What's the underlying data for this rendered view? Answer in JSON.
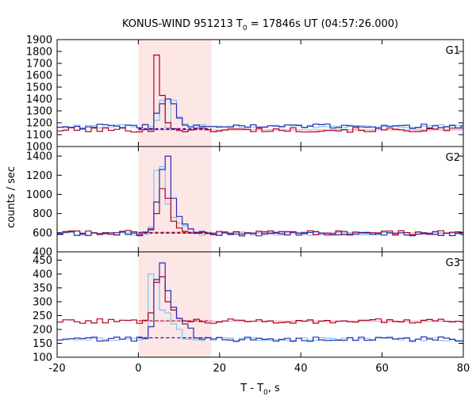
{
  "chart_data": {
    "type": "line",
    "title": "KONUS-WIND 951213 T",
    "title_sub": "0",
    "title_rest": " = 17846s UT (04:57:26.000)",
    "xlabel_main": "T - T",
    "xlabel_sub": "0",
    "xlabel_rest": ", s",
    "ylabel": "counts / sec",
    "xlim": [
      -20,
      80
    ],
    "xticks": [
      -20,
      0,
      20,
      40,
      60,
      80
    ],
    "highlight_interval": [
      0,
      18
    ],
    "bin_width": 1.4,
    "colors": {
      "red": "#b0001e",
      "blue": "#2c2cb4",
      "lightblue": "#78c8f0",
      "pink": "#f0a0b4",
      "shade": "#fde6e6",
      "background_dashes": "#1a1aa0"
    },
    "panels": [
      {
        "label": "G1",
        "ylim": [
          1000,
          1900
        ],
        "yticks": [
          1000,
          1100,
          1200,
          1300,
          1400,
          1500,
          1600,
          1700,
          1800,
          1900
        ],
        "background_level": 1150,
        "red_level": 1140,
        "blue_level": 1170,
        "red_peak": [
          [
            4.0,
            1770
          ],
          [
            5.4,
            1430
          ],
          [
            6.8,
            1200
          ],
          [
            8.2,
            1150
          ]
        ],
        "blue_peak": [
          [
            4.2,
            1280
          ],
          [
            5.6,
            1360
          ],
          [
            7.0,
            1400
          ],
          [
            8.4,
            1360
          ],
          [
            9.8,
            1240
          ],
          [
            11.2,
            1180
          ]
        ],
        "model_peak": [
          [
            3.6,
            1220
          ],
          [
            5.0,
            1390
          ],
          [
            7.8,
            1390
          ],
          [
            9.2,
            1250
          ],
          [
            10.6,
            1190
          ]
        ]
      },
      {
        "label": "G2",
        "ylim": [
          400,
          1500
        ],
        "yticks": [
          400,
          600,
          800,
          1000,
          1200,
          1400
        ],
        "background_level": 595,
        "red_level": 600,
        "blue_level": 590,
        "red_peak": [
          [
            2.0,
            640
          ],
          [
            3.4,
            800
          ],
          [
            4.8,
            1060
          ],
          [
            6.2,
            960
          ],
          [
            7.6,
            720
          ],
          [
            9.0,
            650
          ]
        ],
        "blue_peak": [
          [
            2.0,
            630
          ],
          [
            3.4,
            920
          ],
          [
            4.8,
            1260
          ],
          [
            6.2,
            1400
          ],
          [
            7.6,
            960
          ],
          [
            9.0,
            770
          ],
          [
            10.4,
            690
          ],
          [
            11.8,
            640
          ]
        ],
        "model_peak": [
          [
            2.2,
            660
          ],
          [
            3.6,
            1250
          ],
          [
            5.0,
            1290
          ],
          [
            6.4,
            900
          ],
          [
            7.8,
            760
          ],
          [
            9.2,
            700
          ],
          [
            10.6,
            670
          ],
          [
            12.0,
            640
          ]
        ]
      },
      {
        "label": "G3",
        "ylim": [
          100,
          480
        ],
        "yticks": [
          100,
          150,
          200,
          250,
          300,
          350,
          400,
          450
        ],
        "background_level": 170,
        "red_level": 230,
        "blue_level": 165,
        "red_peak": [
          [
            2.0,
            260
          ],
          [
            3.4,
            370
          ],
          [
            4.8,
            390
          ],
          [
            6.2,
            300
          ],
          [
            7.6,
            270
          ],
          [
            9.0,
            240
          ]
        ],
        "blue_peak": [
          [
            2.0,
            210
          ],
          [
            3.4,
            380
          ],
          [
            4.8,
            440
          ],
          [
            6.2,
            340
          ],
          [
            7.6,
            280
          ],
          [
            9.0,
            240
          ],
          [
            10.4,
            220
          ],
          [
            11.8,
            205
          ]
        ],
        "model_peak": [
          [
            2.6,
            400
          ],
          [
            4.0,
            380
          ],
          [
            5.4,
            270
          ],
          [
            6.8,
            260
          ],
          [
            8.2,
            220
          ],
          [
            9.6,
            200
          ]
        ]
      }
    ]
  }
}
